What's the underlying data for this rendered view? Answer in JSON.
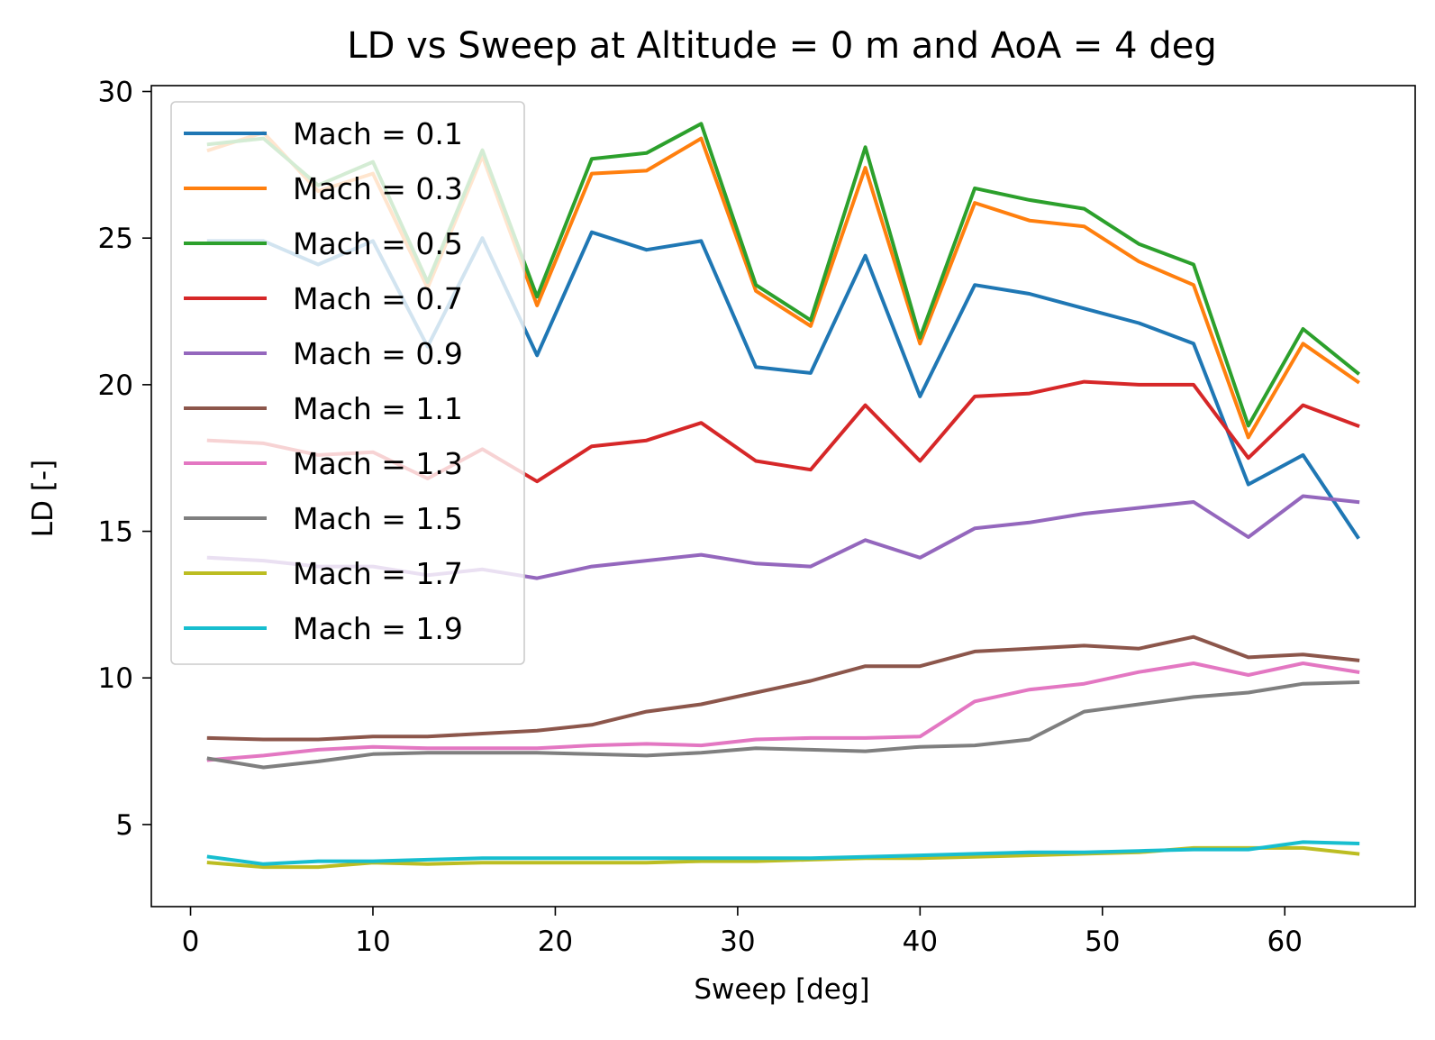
{
  "chart_data": {
    "type": "line",
    "title": "LD vs Sweep at Altitude = 0 m and AoA = 4 deg",
    "xlabel": "Sweep [deg]",
    "ylabel": "LD [-]",
    "xlim": [
      -2.15,
      67.15
    ],
    "ylim": [
      2.2,
      30.2
    ],
    "xticks": [
      0,
      10,
      20,
      30,
      40,
      50,
      60
    ],
    "yticks": [
      5,
      10,
      15,
      20,
      25,
      30
    ],
    "grid": false,
    "legend_position": "upper-left",
    "x": [
      1,
      4,
      7,
      10,
      13,
      16,
      19,
      22,
      25,
      28,
      31,
      34,
      37,
      40,
      43,
      46,
      49,
      52,
      55,
      58,
      61,
      64
    ],
    "series": [
      {
        "name": "Mach = 0.1",
        "color": "#1f77b4",
        "values": [
          24.9,
          24.9,
          24.1,
          24.9,
          21.3,
          25.0,
          21.0,
          25.2,
          24.6,
          24.9,
          20.6,
          20.4,
          24.4,
          19.6,
          23.4,
          23.1,
          22.6,
          22.1,
          21.4,
          16.6,
          17.6,
          14.8
        ]
      },
      {
        "name": "Mach = 0.3",
        "color": "#ff7f0e",
        "values": [
          28.0,
          28.6,
          26.6,
          27.2,
          23.3,
          27.8,
          22.7,
          27.2,
          27.3,
          28.4,
          23.2,
          22.0,
          27.4,
          21.4,
          26.2,
          25.6,
          25.4,
          24.2,
          23.4,
          18.2,
          21.4,
          20.1
        ]
      },
      {
        "name": "Mach = 0.5",
        "color": "#2ca02c",
        "values": [
          28.2,
          28.4,
          26.8,
          27.6,
          23.5,
          28.0,
          23.0,
          27.7,
          27.9,
          28.9,
          23.4,
          22.2,
          28.1,
          21.6,
          26.7,
          26.3,
          26.0,
          24.8,
          24.1,
          18.6,
          21.9,
          20.4
        ]
      },
      {
        "name": "Mach = 0.7",
        "color": "#d62728",
        "values": [
          18.1,
          18.0,
          17.6,
          17.7,
          16.8,
          17.8,
          16.7,
          17.9,
          18.1,
          18.7,
          17.4,
          17.1,
          19.3,
          17.4,
          19.6,
          19.7,
          20.1,
          20.0,
          20.0,
          17.5,
          19.3,
          18.6
        ]
      },
      {
        "name": "Mach = 0.9",
        "color": "#9467bd",
        "values": [
          14.1,
          14.0,
          13.8,
          13.8,
          13.5,
          13.7,
          13.4,
          13.8,
          14.0,
          14.2,
          13.9,
          13.8,
          14.7,
          14.1,
          15.1,
          15.3,
          15.6,
          15.8,
          16.0,
          14.8,
          16.2,
          16.0
        ]
      },
      {
        "name": "Mach = 1.1",
        "color": "#8c564b",
        "values": [
          7.95,
          7.9,
          7.9,
          8.0,
          8.0,
          8.1,
          8.2,
          8.4,
          8.85,
          9.1,
          9.5,
          9.9,
          10.4,
          10.4,
          10.9,
          11.0,
          11.1,
          11.0,
          11.4,
          10.7,
          10.8,
          10.6
        ]
      },
      {
        "name": "Mach = 1.3",
        "color": "#e377c2",
        "values": [
          7.2,
          7.35,
          7.55,
          7.65,
          7.6,
          7.6,
          7.6,
          7.7,
          7.75,
          7.7,
          7.9,
          7.95,
          7.95,
          8.0,
          9.2,
          9.6,
          9.8,
          10.2,
          10.5,
          10.1,
          10.5,
          10.2
        ]
      },
      {
        "name": "Mach = 1.5",
        "color": "#7f7f7f",
        "values": [
          7.25,
          6.95,
          7.15,
          7.4,
          7.45,
          7.45,
          7.45,
          7.4,
          7.35,
          7.45,
          7.6,
          7.55,
          7.5,
          7.65,
          7.7,
          7.9,
          8.85,
          9.1,
          9.35,
          9.5,
          9.8,
          9.85
        ]
      },
      {
        "name": "Mach = 1.7",
        "color": "#bcbd22",
        "values": [
          3.7,
          3.55,
          3.55,
          3.7,
          3.65,
          3.7,
          3.7,
          3.7,
          3.7,
          3.75,
          3.75,
          3.8,
          3.85,
          3.85,
          3.9,
          3.95,
          4.0,
          4.05,
          4.2,
          4.2,
          4.2,
          4.0
        ]
      },
      {
        "name": "Mach = 1.9",
        "color": "#17becf",
        "values": [
          3.9,
          3.65,
          3.75,
          3.75,
          3.8,
          3.85,
          3.85,
          3.85,
          3.85,
          3.85,
          3.85,
          3.85,
          3.9,
          3.95,
          4.0,
          4.05,
          4.05,
          4.1,
          4.15,
          4.15,
          4.4,
          4.35
        ]
      }
    ]
  }
}
